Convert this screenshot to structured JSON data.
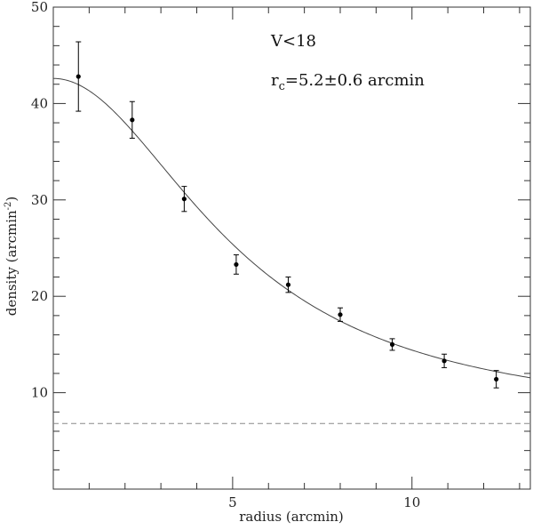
{
  "chart_data": {
    "type": "scatter",
    "xlabel": "radius (arcmin)",
    "ylabel": "density (arcmin",
    "ylabel_sup": "-2",
    "ylabel_end": ")",
    "xlim": [
      0,
      13.3
    ],
    "ylim": [
      0,
      50
    ],
    "x_ticks": [
      5,
      10
    ],
    "x_tick_labels": [
      "5",
      "10"
    ],
    "y_ticks": [
      10,
      20,
      30,
      40,
      50
    ],
    "y_tick_labels": [
      "10",
      "20",
      "30",
      "40",
      "50"
    ],
    "x_minor_step": 1,
    "y_minor_step": 2,
    "grid": false,
    "annotations": {
      "magnitude": "V<18",
      "core_prefix": "r",
      "core_sub": "c",
      "core_value": "=5.2±0.6  arcmin"
    },
    "points": [
      {
        "x": 0.7,
        "y": 42.8,
        "err": 3.6
      },
      {
        "x": 2.2,
        "y": 38.3,
        "err": 1.9
      },
      {
        "x": 3.65,
        "y": 30.1,
        "err": 1.3
      },
      {
        "x": 5.1,
        "y": 23.3,
        "err": 1.0
      },
      {
        "x": 6.55,
        "y": 21.2,
        "err": 0.8
      },
      {
        "x": 8.0,
        "y": 18.1,
        "err": 0.7
      },
      {
        "x": 9.45,
        "y": 15.0,
        "err": 0.6
      },
      {
        "x": 10.9,
        "y": 13.3,
        "err": 0.7
      },
      {
        "x": 12.35,
        "y": 11.4,
        "err": 0.9
      }
    ],
    "fit": {
      "model": "king-profile",
      "background": 6.8,
      "central_density_above_background": 35.8,
      "core_radius": 5.2
    },
    "background_level": 6.8,
    "colors": {
      "axes": "#333333",
      "points": "#000000",
      "fit": "#444444",
      "background_line": "#888888"
    }
  }
}
